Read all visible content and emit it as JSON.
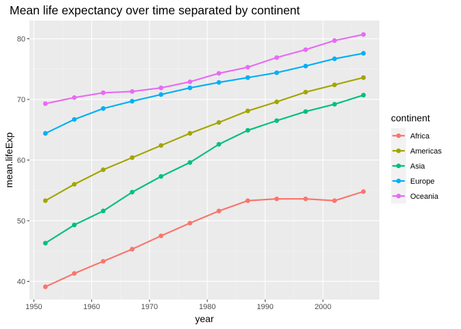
{
  "chart_data": {
    "type": "line",
    "title": "Mean life expectancy over time separated by continent",
    "xlabel": "year",
    "ylabel": "mean.lifeExp",
    "xlim": [
      1949.25,
      2009.75
    ],
    "ylim": [
      37.0,
      83.0
    ],
    "x_ticks": [
      1950,
      1960,
      1970,
      1980,
      1990,
      2000
    ],
    "y_ticks": [
      40,
      50,
      60,
      70,
      80
    ],
    "x": [
      1952,
      1957,
      1962,
      1967,
      1972,
      1977,
      1982,
      1987,
      1992,
      1997,
      2002,
      2007
    ],
    "grid": true,
    "legend": {
      "title": "continent",
      "position": "right"
    },
    "series": [
      {
        "name": "Africa",
        "color": "#F8766D",
        "values": [
          39.1,
          41.3,
          43.3,
          45.3,
          47.5,
          49.6,
          51.6,
          53.3,
          53.6,
          53.6,
          53.3,
          54.8
        ]
      },
      {
        "name": "Americas",
        "color": "#A3A500",
        "values": [
          53.3,
          56.0,
          58.4,
          60.4,
          62.4,
          64.4,
          66.2,
          68.1,
          69.6,
          71.2,
          72.4,
          73.6
        ]
      },
      {
        "name": "Asia",
        "color": "#00BF7D",
        "values": [
          46.3,
          49.3,
          51.6,
          54.7,
          57.3,
          59.6,
          62.6,
          64.9,
          66.5,
          68.0,
          69.2,
          70.7
        ]
      },
      {
        "name": "Europe",
        "color": "#00B0F6",
        "values": [
          64.4,
          66.7,
          68.5,
          69.7,
          70.8,
          71.9,
          72.8,
          73.6,
          74.4,
          75.5,
          76.7,
          77.6
        ]
      },
      {
        "name": "Oceania",
        "color": "#E76BF3",
        "values": [
          69.3,
          70.3,
          71.1,
          71.3,
          71.9,
          72.9,
          74.3,
          75.3,
          76.9,
          78.2,
          79.7,
          80.7
        ]
      }
    ]
  }
}
